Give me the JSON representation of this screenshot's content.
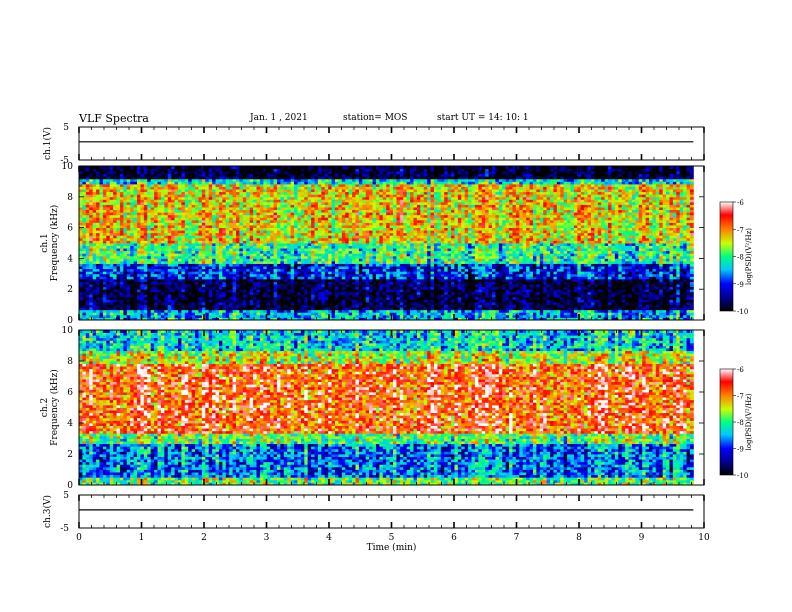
{
  "header": {
    "title": "VLF Spectra",
    "date": "Jan. 1 , 2021",
    "station": "station= MOS",
    "start": "start UT =  14: 10: 1"
  },
  "chart_data": [
    {
      "type": "line",
      "ylabel": "ch.1(V)",
      "ylim": [
        -5,
        5
      ],
      "yticks": [
        "5",
        "-5"
      ],
      "x": [
        0,
        10
      ],
      "values": [
        0,
        0
      ],
      "grid": false
    },
    {
      "type": "heatmap",
      "ylabel": "ch.1\nFrequency (kHz)",
      "yticks": [
        "0",
        "2",
        "4",
        "6",
        "8",
        "10"
      ],
      "ylim": [
        0,
        10
      ],
      "xlim": [
        0,
        10
      ],
      "colorbar": {
        "label": "log(PSD)(V²/Hz)",
        "ticks": [
          "-6",
          "-7",
          "-8",
          "-9",
          "-10"
        ],
        "range": [
          -10,
          -6
        ]
      },
      "bands_khz_log_psd": [
        {
          "f": [
            0,
            0.6
          ],
          "log_psd": -8.5
        },
        {
          "f": [
            0.6,
            2.6
          ],
          "log_psd": -9.8
        },
        {
          "f": [
            2.6,
            3.6
          ],
          "log_psd": -9.0
        },
        {
          "f": [
            3.6,
            5.0
          ],
          "log_psd": -8.0
        },
        {
          "f": [
            5.0,
            8.8
          ],
          "log_psd": -7.3
        },
        {
          "f": [
            8.8,
            9.2
          ],
          "log_psd": -8.3
        },
        {
          "f": [
            9.2,
            10
          ],
          "log_psd": -9.9
        }
      ]
    },
    {
      "type": "heatmap",
      "ylabel": "ch.2\nFrequency (kHz)",
      "yticks": [
        "0",
        "2",
        "4",
        "6",
        "8",
        "10"
      ],
      "ylim": [
        0,
        10
      ],
      "xlim": [
        0,
        10
      ],
      "colorbar": {
        "label": "log(PSD)(V²/Hz)",
        "ticks": [
          "-6",
          "-7",
          "-8",
          "-9",
          "-10"
        ],
        "range": [
          -10,
          -6
        ]
      },
      "bands_khz_log_psd": [
        {
          "f": [
            0,
            0.5
          ],
          "log_psd": -7.8
        },
        {
          "f": [
            0.5,
            2.6
          ],
          "log_psd": -8.7
        },
        {
          "f": [
            2.6,
            3.4
          ],
          "log_psd": -7.8
        },
        {
          "f": [
            3.4,
            7.8
          ],
          "log_psd": -6.7
        },
        {
          "f": [
            7.8,
            8.6
          ],
          "log_psd": -7.5
        },
        {
          "f": [
            8.6,
            10
          ],
          "log_psd": -8.3
        }
      ]
    },
    {
      "type": "line",
      "ylabel": "ch.3(V)",
      "ylim": [
        -5,
        5
      ],
      "yticks": [
        "5",
        "-5"
      ],
      "x": [
        0,
        10
      ],
      "values": [
        0,
        0
      ],
      "grid": false,
      "xlabel": "Time (min)",
      "xticks": [
        "0",
        "1",
        "2",
        "3",
        "4",
        "5",
        "6",
        "7",
        "8",
        "9",
        "10"
      ]
    }
  ],
  "colors": {
    "colormap": [
      "#000000",
      "#00008b",
      "#0000ff",
      "#00c8ff",
      "#00ff80",
      "#c8ff00",
      "#ff8000",
      "#ff0000",
      "#ffffff"
    ],
    "axis": "#000000"
  }
}
